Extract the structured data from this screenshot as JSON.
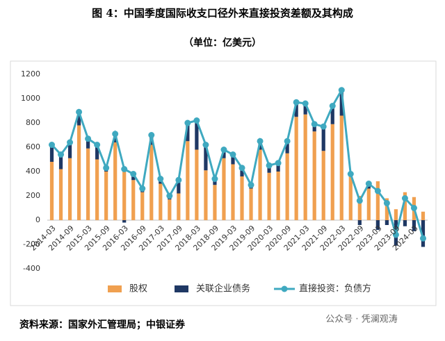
{
  "header": {
    "title": "图 4：中国季度国际收支口径外来直接投资差额及其构成",
    "subtitle": "（单位：亿美元）"
  },
  "chart_data": {
    "type": "bar",
    "categories": [
      "2014-03",
      null,
      "2014-09",
      null,
      "2015-03",
      null,
      "2015-09",
      null,
      "2016-03",
      null,
      "2016-09",
      null,
      "2017-03",
      null,
      "2017-09",
      null,
      "2018-03",
      null,
      "2018-09",
      null,
      "2019-03",
      null,
      "2019-09",
      null,
      "2020-03",
      null,
      "2020-09",
      null,
      "2021-03",
      null,
      "2021-09",
      null,
      "2022-03",
      null,
      "2022-09",
      null,
      "2023-03",
      null,
      "2023-09",
      null,
      "2024-03",
      null
    ],
    "series": [
      {
        "name": "股权",
        "type": "bar",
        "color": "#f0a050",
        "values": [
          480,
          420,
          510,
          780,
          590,
          500,
          400,
          640,
          400,
          330,
          230,
          620,
          300,
          170,
          220,
          650,
          580,
          410,
          290,
          510,
          460,
          360,
          260,
          580,
          390,
          400,
          550,
          850,
          870,
          730,
          570,
          790,
          860,
          360,
          200,
          260,
          320,
          180,
          90,
          230,
          190,
          70
        ]
      },
      {
        "name": "关联企业债务",
        "type": "bar",
        "color": "#1f3864",
        "values": [
          140,
          120,
          130,
          110,
          80,
          120,
          30,
          70,
          -20,
          50,
          30,
          80,
          40,
          30,
          110,
          150,
          240,
          210,
          50,
          70,
          80,
          70,
          30,
          70,
          60,
          70,
          100,
          120,
          90,
          60,
          200,
          150,
          210,
          20,
          -40,
          40,
          -80,
          -40,
          -210,
          -50,
          -90,
          -220
        ]
      },
      {
        "name": "直接投资：负债方",
        "type": "line",
        "color": "#3fa9c0",
        "values": [
          620,
          540,
          640,
          890,
          670,
          620,
          430,
          710,
          420,
          380,
          260,
          700,
          340,
          200,
          330,
          800,
          820,
          620,
          340,
          580,
          540,
          430,
          290,
          650,
          450,
          470,
          650,
          970,
          960,
          790,
          770,
          940,
          1070,
          380,
          160,
          300,
          240,
          140,
          -120,
          180,
          100,
          -150
        ]
      }
    ],
    "ylim": [
      -400,
      1200
    ],
    "yticks": [
      -400,
      -200,
      0,
      200,
      400,
      600,
      800,
      1000,
      1200
    ],
    "grid": false
  },
  "footer": {
    "source": "资料来源：国家外汇管理局；中银证券",
    "watermark": "公众号 · 凭澜观涛"
  }
}
